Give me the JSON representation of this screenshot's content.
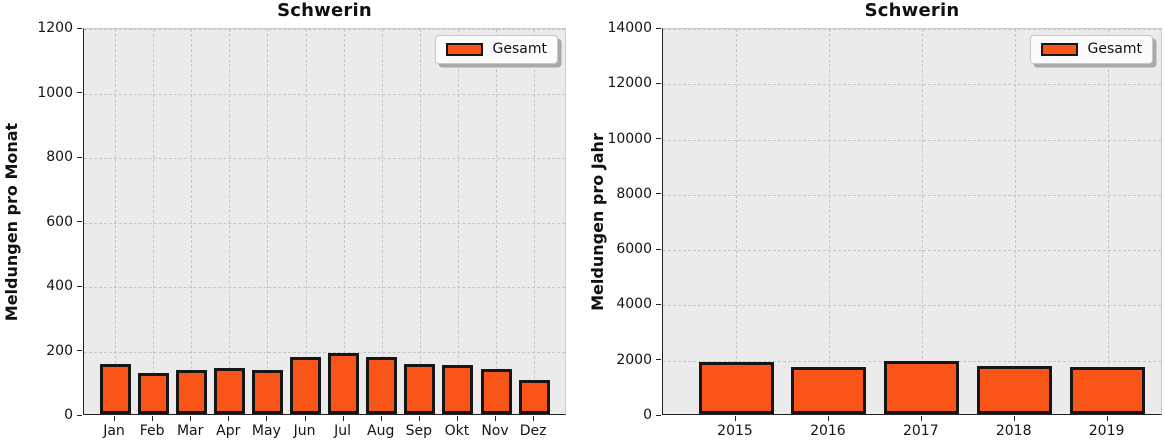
{
  "colors": {
    "bar_fill": "#FA5519",
    "bar_edge": "#161616",
    "plot_background": "#EBEBEB",
    "grid": "#C6C6C6",
    "spine_dark": "#222222",
    "spine_light": "#CBCBCB",
    "figure_background": "#FFFFFF"
  },
  "chart_data": [
    {
      "type": "bar",
      "title": "Schwerin",
      "xlabel": "",
      "ylabel": "Meldungen pro Monat",
      "categories": [
        "Jan",
        "Feb",
        "Mar",
        "Apr",
        "May",
        "Jun",
        "Jul",
        "Aug",
        "Sep",
        "Okt",
        "Nov",
        "Dez"
      ],
      "series": [
        {
          "name": "Gesamt",
          "values": [
            150,
            123,
            131,
            139,
            133,
            171,
            185,
            172,
            150,
            146,
            136,
            102
          ]
        }
      ],
      "ylim": [
        0,
        1200
      ],
      "ytick_step": 200,
      "yticks": [
        0,
        200,
        400,
        600,
        800,
        1000,
        1200
      ],
      "grid": "dashed-both",
      "legend": {
        "label": "Gesamt",
        "position": "upper right"
      }
    },
    {
      "type": "bar",
      "title": "Schwerin",
      "xlabel": "",
      "ylabel": "Meldungen pro Jahr",
      "categories": [
        "2015",
        "2016",
        "2017",
        "2018",
        "2019"
      ],
      "series": [
        {
          "name": "Gesamt",
          "values": [
            1830,
            1660,
            1860,
            1700,
            1640
          ]
        }
      ],
      "ylim": [
        0,
        14000
      ],
      "ytick_step": 2000,
      "yticks": [
        0,
        2000,
        4000,
        6000,
        8000,
        10000,
        12000,
        14000
      ],
      "grid": "dashed-both",
      "legend": {
        "label": "Gesamt",
        "position": "upper right"
      }
    }
  ]
}
